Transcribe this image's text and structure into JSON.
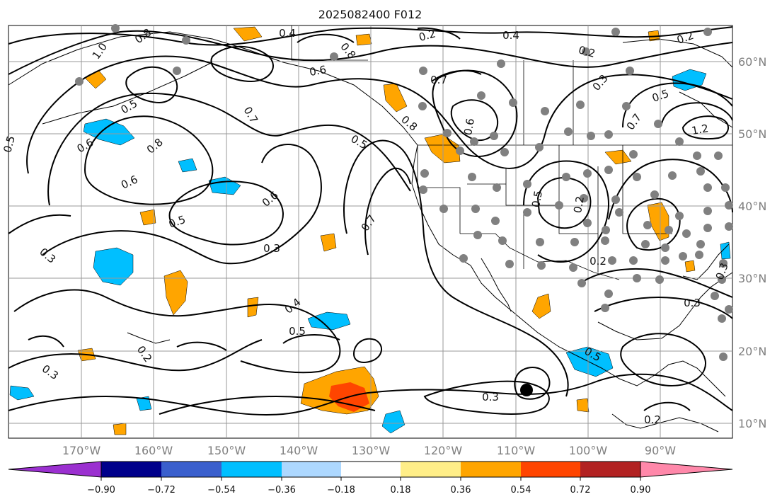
{
  "title": "2025082400 F012",
  "map": {
    "lon_labels": [
      "170°W",
      "160°W",
      "150°W",
      "140°W",
      "130°W",
      "120°W",
      "110°W",
      "100°W",
      "90°W"
    ],
    "lat_labels": [
      "60°N",
      "50°N",
      "40°N",
      "30°N",
      "20°N",
      "10°N"
    ],
    "axis_label_color": "#7f7f7f",
    "grid_color": "#999999"
  },
  "colorbar": {
    "tick_labels": [
      "−0.90",
      "−0.72",
      "−0.54",
      "−0.36",
      "−0.18",
      "0.18",
      "0.36",
      "0.54",
      "0.72",
      "0.90"
    ],
    "colors": [
      "#9b30d0",
      "#00008b",
      "#3a5fcd",
      "#00bfff",
      "#add8ff",
      "#ffffff",
      "#ffee88",
      "#ffa500",
      "#ff4500",
      "#b22222",
      "#ff88aa"
    ]
  },
  "contour_labels": [
    "0.4",
    "0.2",
    "0.4",
    "0.2",
    "1.0",
    "0.8",
    "0.8",
    "0.7",
    "0.6",
    "0.7",
    "0.6",
    "0.8",
    "0.6",
    "0.5",
    "0.5",
    "0.6",
    "0.5",
    "0.3",
    "0.7",
    "0.8",
    "0.4",
    "0.5",
    "0.3",
    "0.2",
    "0.3",
    "0.2",
    "0.3",
    "0.5",
    "0.7",
    "1.2",
    "0.3",
    "0.2",
    "0.2",
    "0.3",
    "0.3",
    "0.5",
    "0.2",
    "0.5",
    "0.6",
    "0.5"
  ]
}
